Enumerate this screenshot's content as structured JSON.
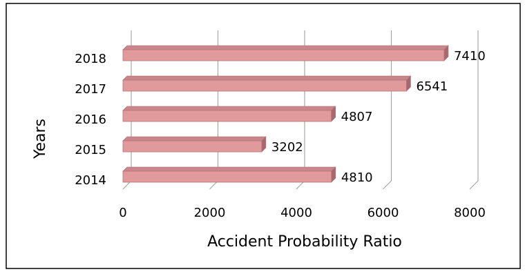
{
  "chart_data": {
    "type": "bar",
    "orientation": "horizontal",
    "style": "3d",
    "categories": [
      "2014",
      "2015",
      "2016",
      "2017",
      "2018"
    ],
    "series": [
      {
        "values": [
          4810,
          3202,
          4807,
          6541,
          7410
        ]
      }
    ],
    "data_labels": [
      "4810",
      "3202",
      "4807",
      "6541",
      "7410"
    ],
    "xlabel": "Accident Probability Ratio",
    "ylabel": "Years",
    "xlim": [
      0,
      8000
    ],
    "x_ticks": [
      0,
      2000,
      4000,
      6000,
      8000
    ],
    "x_tick_labels": [
      "0",
      "2000",
      "4000",
      "6000",
      "8000"
    ],
    "vertical_gridlines": true,
    "legend": "none",
    "colors": {
      "bar_front": "#e09a9c",
      "bar_top": "#c7868a",
      "bar_side": "#a8686d",
      "bar_outline": "#b27176",
      "gridline": "#a6a6a6",
      "border": "#000000"
    }
  }
}
